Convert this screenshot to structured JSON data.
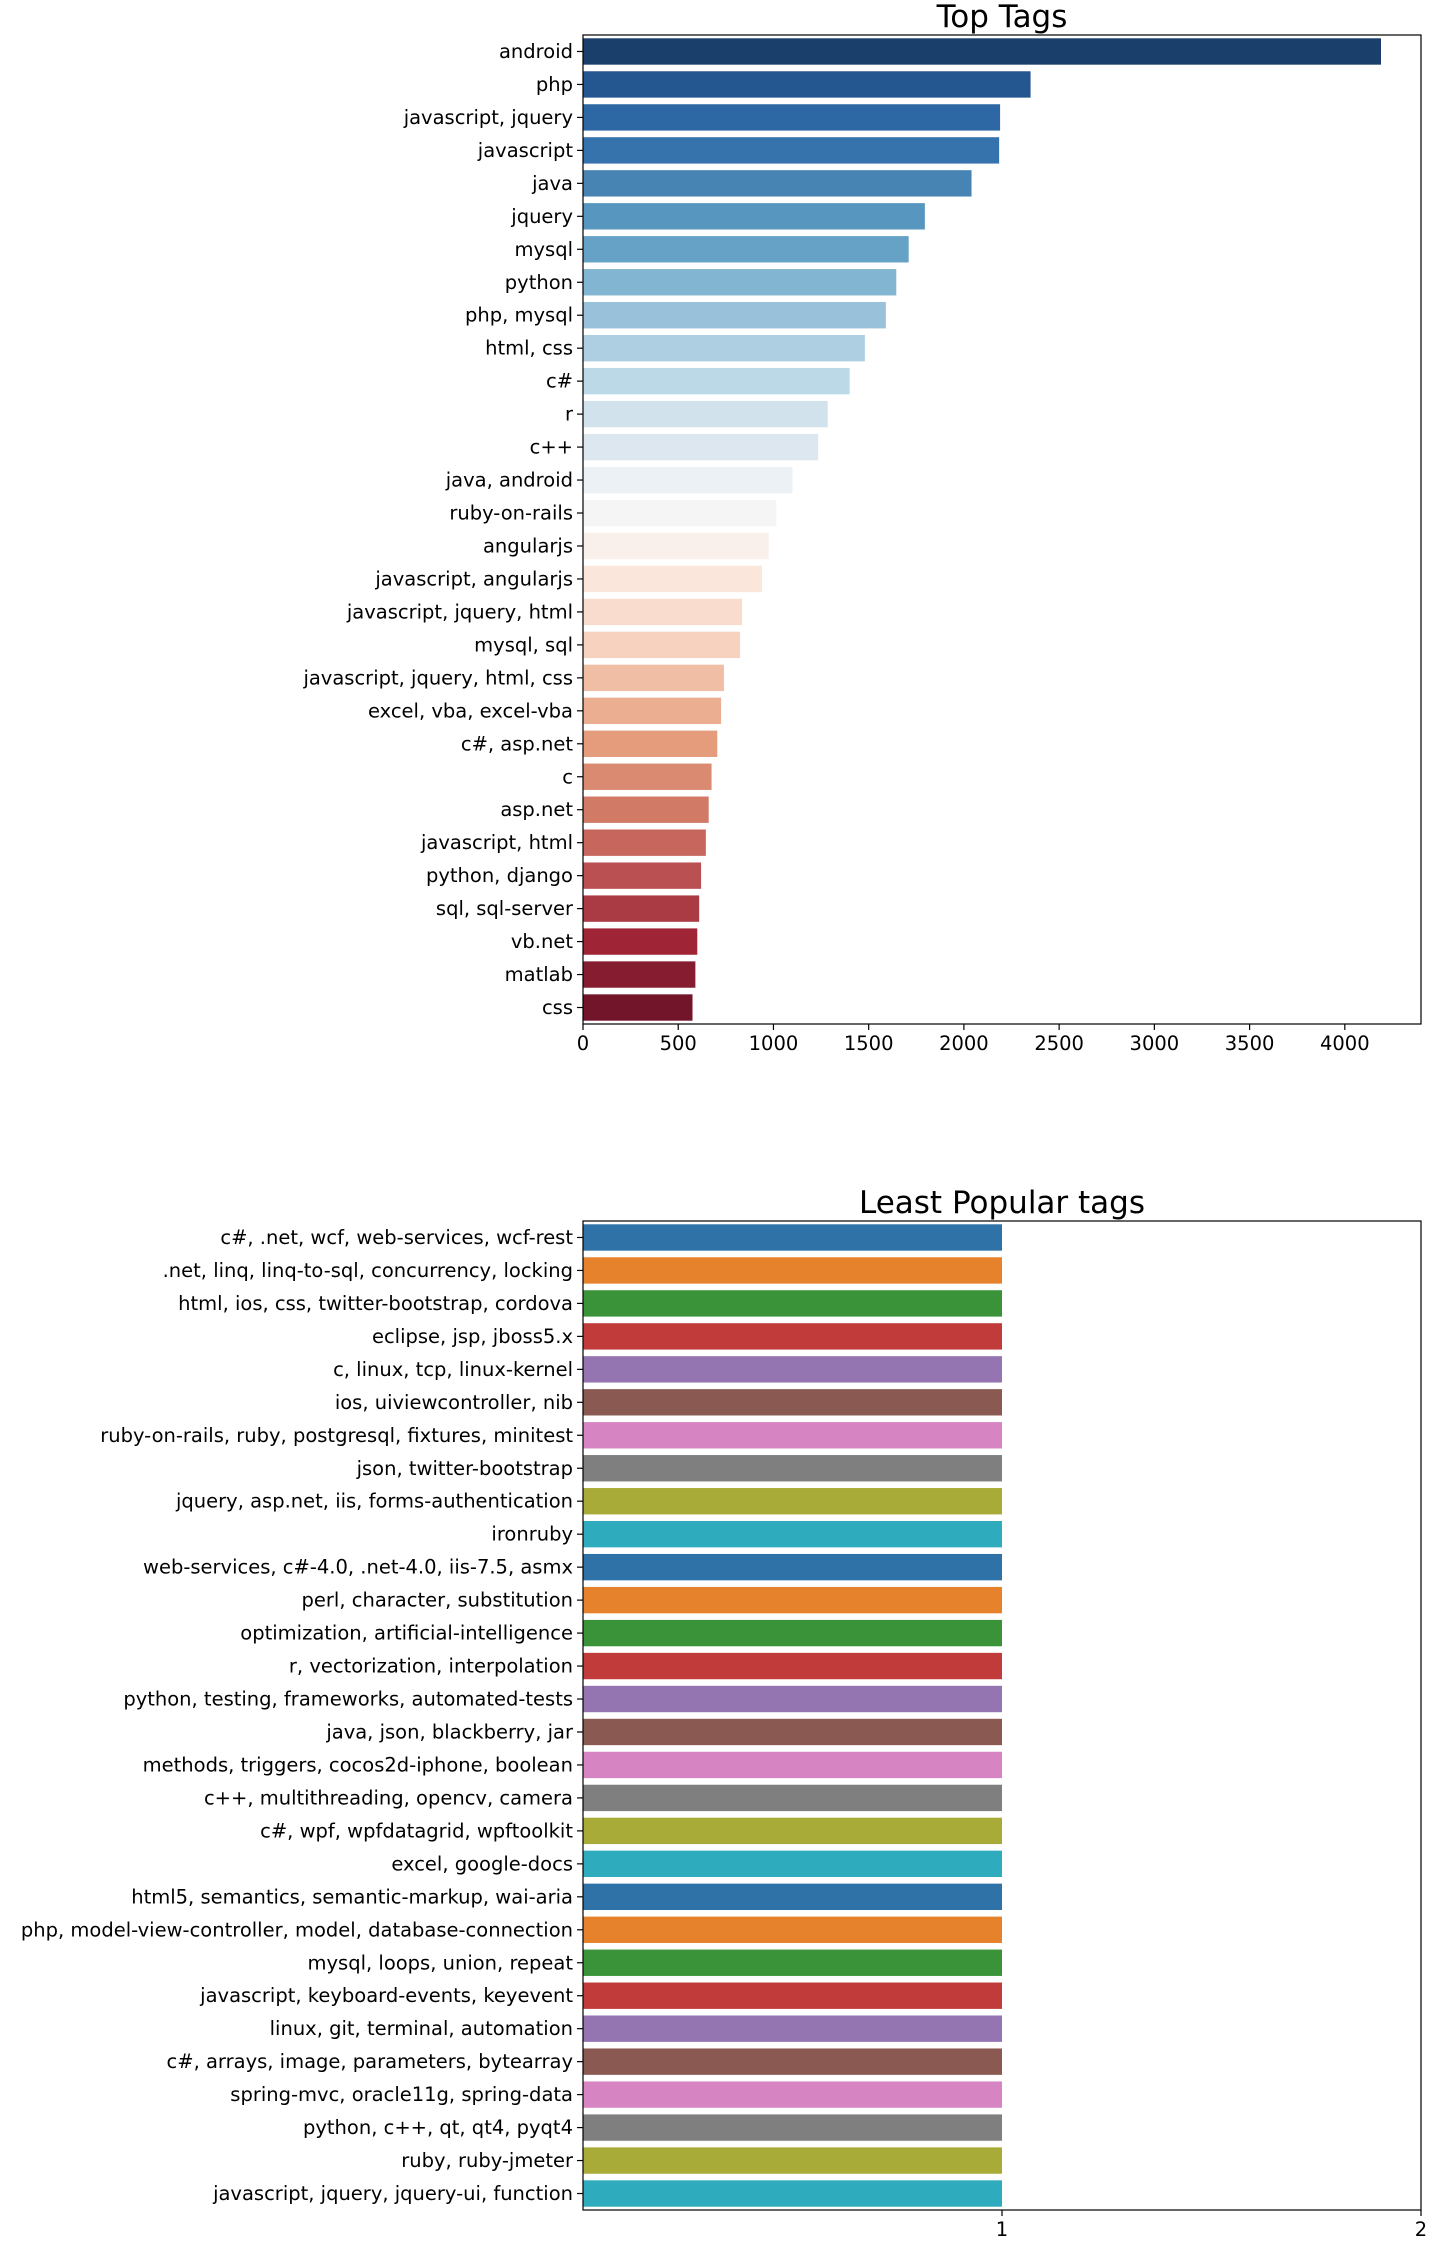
{
  "chart_data": [
    {
      "type": "bar",
      "orientation": "horizontal",
      "title": "Top Tags",
      "xlabel": "",
      "ylabel": "",
      "xlim": [
        0,
        4400
      ],
      "xticks": [
        0,
        500,
        1000,
        1500,
        2000,
        2500,
        3000,
        3500,
        4000
      ],
      "grid": false,
      "palette": "RdBu_r",
      "categories": [
        "android",
        "php",
        "javascript, jquery",
        "javascript",
        "java",
        "jquery",
        "mysql",
        "python",
        "php, mysql",
        "html, css",
        "c#",
        "r",
        "c++",
        "java, android",
        "ruby-on-rails",
        "angularjs",
        "javascript, angularjs",
        "javascript, jquery, html",
        "mysql, sql",
        "javascript, jquery, html, css",
        "excel, vba, excel-vba",
        "c#, asp.net",
        "c",
        "asp.net",
        "javascript, html",
        "python, django",
        "sql, sql-server",
        "vb.net",
        "matlab",
        "css"
      ],
      "values": [
        4190,
        2350,
        2190,
        2185,
        2040,
        1795,
        1710,
        1645,
        1590,
        1480,
        1400,
        1285,
        1235,
        1100,
        1015,
        975,
        940,
        835,
        825,
        740,
        725,
        705,
        675,
        660,
        645,
        620,
        610,
        600,
        590,
        575
      ],
      "colors": [
        "#1b3f6b",
        "#24568f",
        "#2e68a4",
        "#3672ac",
        "#4784b4",
        "#5796bf",
        "#66a2c6",
        "#82b5d2",
        "#99c2da",
        "#adcfe1",
        "#bcd9e8",
        "#d1e2ec",
        "#dde7ef",
        "#ebf1f4",
        "#f4f5f4",
        "#f9efeb",
        "#fbe6dc",
        "#f9dccd",
        "#f6d2bf",
        "#f0bea5",
        "#ebae90",
        "#e59c7d",
        "#da8a70",
        "#d17b67",
        "#c6665d",
        "#ba5052",
        "#aa3a43",
        "#9f2435",
        "#861c30",
        "#72152b"
      ]
    },
    {
      "type": "bar",
      "orientation": "horizontal",
      "title": "Least Popular tags",
      "xlabel": "",
      "ylabel": "",
      "xlim": [
        0,
        2
      ],
      "xticks": [
        1,
        2
      ],
      "grid": false,
      "palette": "tab10",
      "categories": [
        "c#, .net, wcf, web-services, wcf-rest",
        ".net, linq, linq-to-sql, concurrency, locking",
        "html, ios, css, twitter-bootstrap, cordova",
        "eclipse, jsp, jboss5.x",
        "c, linux, tcp, linux-kernel",
        "ios, uiviewcontroller, nib",
        "ruby-on-rails, ruby, postgresql, fixtures, minitest",
        "json, twitter-bootstrap",
        "jquery, asp.net, iis, forms-authentication",
        "ironruby",
        "web-services, c#-4.0, .net-4.0, iis-7.5, asmx",
        "perl, character, substitution",
        "optimization, artificial-intelligence",
        "r, vectorization, interpolation",
        "python, testing, frameworks, automated-tests",
        "java, json, blackberry, jar",
        "methods, triggers, cocos2d-iphone, boolean",
        "c++, multithreading, opencv, camera",
        "c#, wpf, wpfdatagrid, wpftoolkit",
        "excel, google-docs",
        "html5, semantics, semantic-markup, wai-aria",
        "php, model-view-controller, model, database-connection",
        "mysql, loops, union, repeat",
        "javascript, keyboard-events, keyevent",
        "linux, git, terminal, automation",
        "c#, arrays, image, parameters, bytearray",
        "spring-mvc, oracle11g, spring-data",
        "python, c++, qt, qt4, pyqt4",
        "ruby, ruby-jmeter",
        "javascript, jquery, jquery-ui, function"
      ],
      "values": [
        1,
        1,
        1,
        1,
        1,
        1,
        1,
        1,
        1,
        1,
        1,
        1,
        1,
        1,
        1,
        1,
        1,
        1,
        1,
        1,
        1,
        1,
        1,
        1,
        1,
        1,
        1,
        1,
        1,
        1
      ],
      "colors": [
        "#2f72a8",
        "#e5822b",
        "#3a9339",
        "#c23b3b",
        "#9474b1",
        "#8a5a52",
        "#d685c2",
        "#7f7f7f",
        "#a9ab38",
        "#2eabbd"
      ]
    }
  ]
}
